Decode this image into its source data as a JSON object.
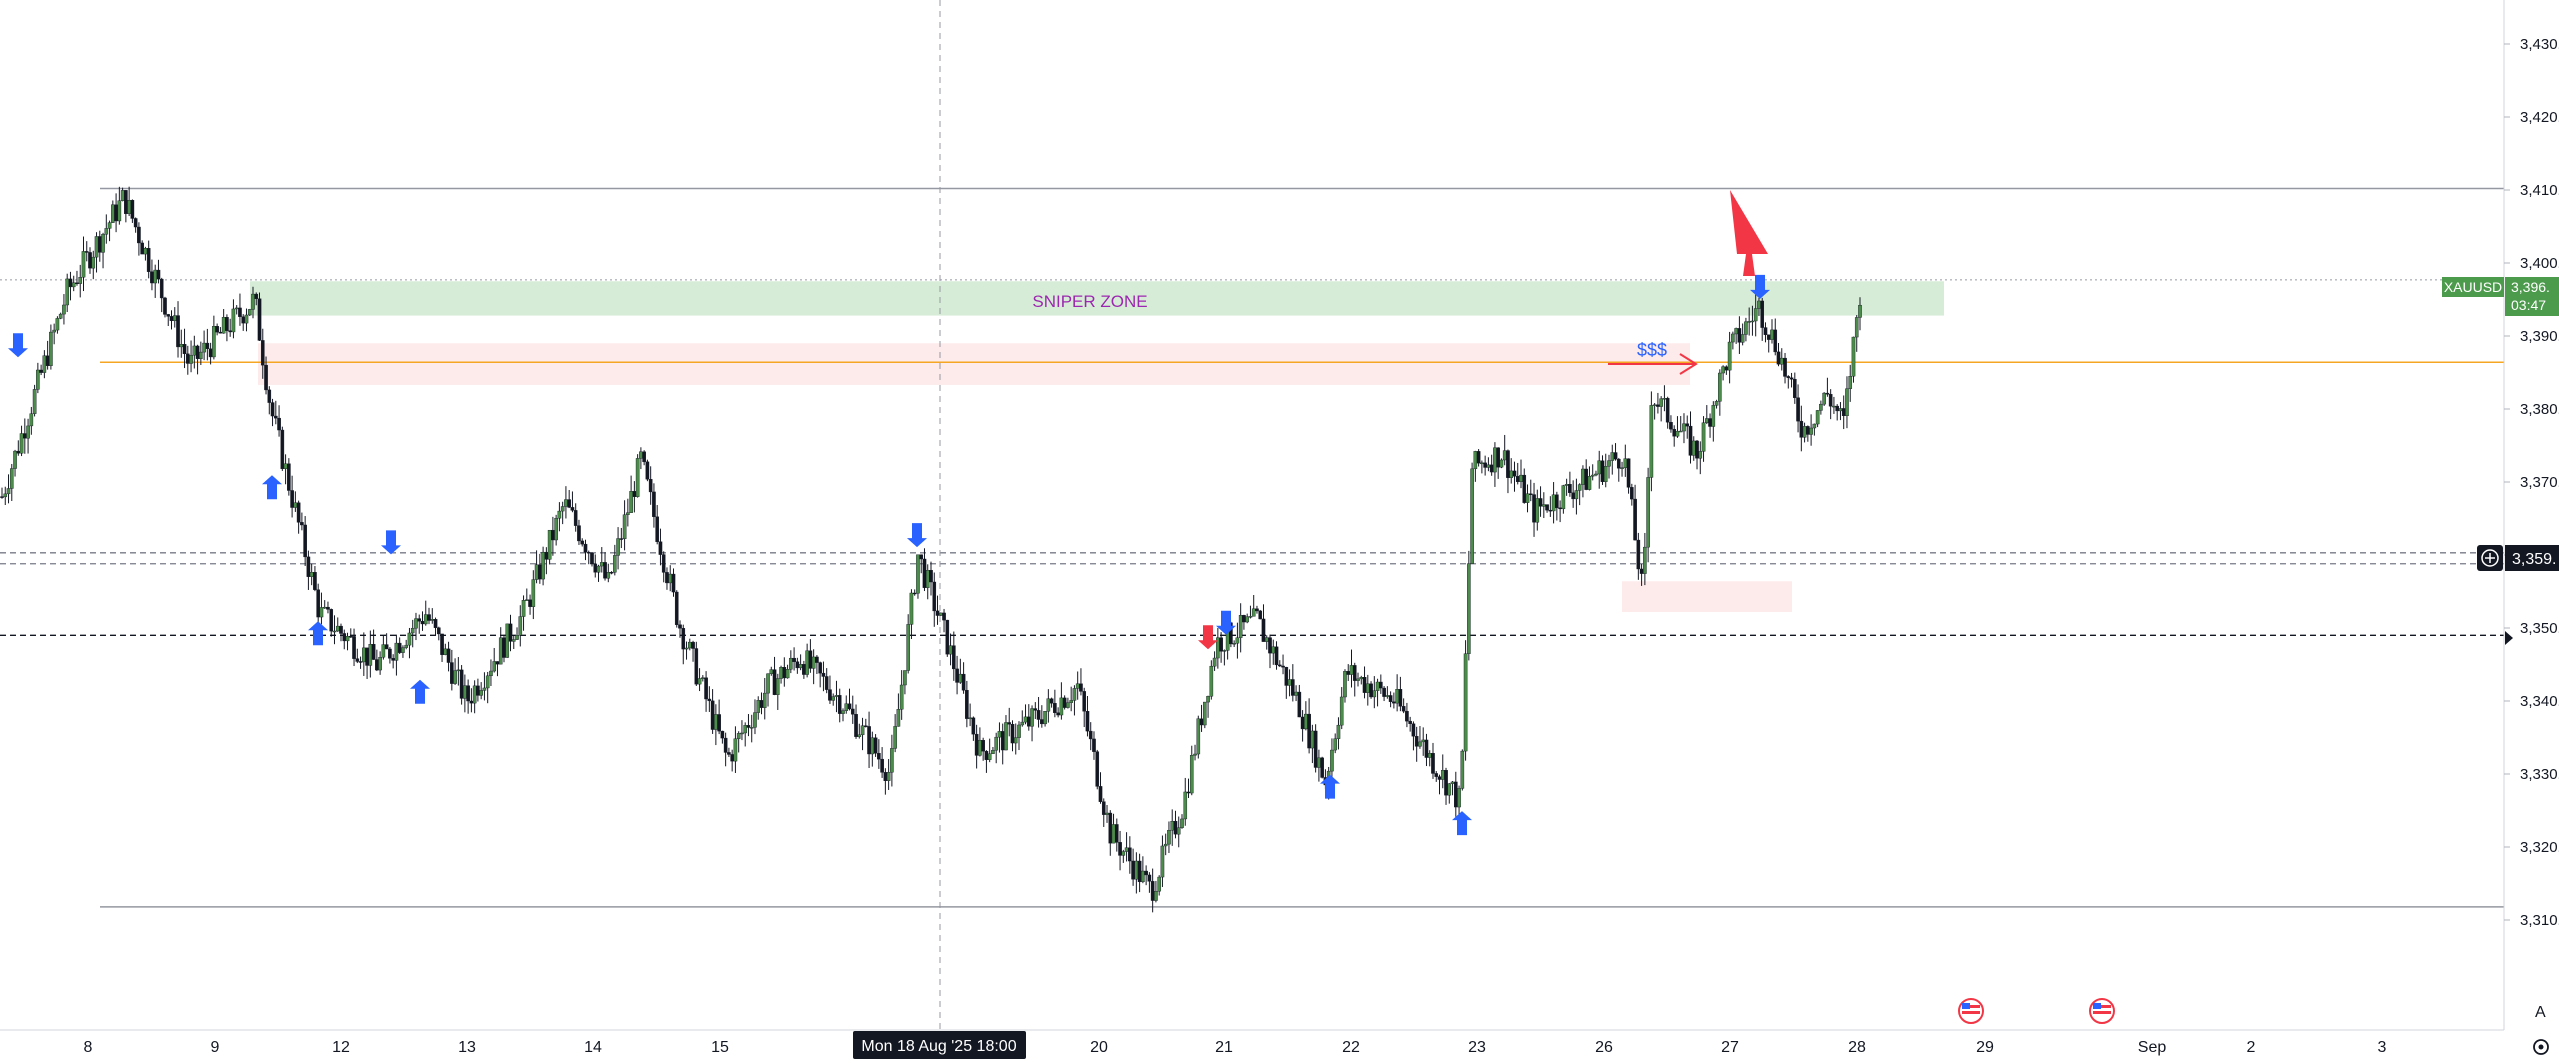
{
  "chart_data": {
    "type": "candlestick",
    "symbol": "XAUUSD",
    "y_axis": {
      "ylim": [
        3298,
        3437
      ],
      "ticks": [
        3310,
        3320,
        3330,
        3340,
        3350,
        3360,
        3370,
        3380,
        3390,
        3400,
        3410,
        3420,
        3430
      ],
      "tick_labels": [
        "3,310.",
        "3,320.",
        "3,330.",
        "3,340.",
        "3,350.",
        "3,360.",
        "3,370.",
        "3,380.",
        "3,390.",
        "3,400.",
        "3,410.",
        "3,420.",
        "3,430."
      ]
    },
    "x_axis": {
      "tick_labels": [
        "8",
        "9",
        "12",
        "13",
        "14",
        "15",
        "20",
        "21",
        "22",
        "23",
        "26",
        "27",
        "28",
        "29",
        "Sep",
        "2",
        "3"
      ],
      "crosshair_label": "Mon 18 Aug '25   18:00"
    },
    "price_tag": {
      "value": "3,396.",
      "countdown": "03:47",
      "price": 3396
    },
    "crosshair_price_tag": {
      "value": "3,359.",
      "price": 3359.2
    },
    "horizontal_lines": [
      {
        "price": 3410.2,
        "style": "solid",
        "color": "#9598a1"
      },
      {
        "price": 3311.8,
        "style": "solid",
        "color": "#9598a1"
      },
      {
        "price": 3386.4,
        "style": "solid",
        "color": "#f5a623"
      },
      {
        "price": 3360.3,
        "style": "dashed",
        "color": "#787b86"
      },
      {
        "price": 3358.8,
        "style": "dashed",
        "color": "#787b86"
      },
      {
        "price": 3349.0,
        "style": "dashed",
        "color": "#131722"
      },
      {
        "price": 3397.7,
        "style": "dotted",
        "color": "#b2b5be"
      }
    ],
    "zones": [
      {
        "label": "SNIPER ZONE",
        "top": 3397.5,
        "bottom": 3392.8,
        "color": "#c8e6c9"
      },
      {
        "label": "",
        "top": 3389.0,
        "bottom": 3383.3,
        "color": "#fde8e8"
      },
      {
        "label": "",
        "top": 3356.4,
        "bottom": 3352.2,
        "color": "#fde8e8"
      }
    ],
    "annotations": [
      {
        "text": "$$$"
      }
    ],
    "colors": {
      "up": "#4c8c4a",
      "down": "#131722",
      "arrow_blue": "#2962ff",
      "arrow_red": "#f23645"
    },
    "key_points": [
      [
        0,
        3368
      ],
      [
        40,
        3396
      ],
      [
        75,
        3409
      ],
      [
        115,
        3386
      ],
      [
        155,
        3395
      ],
      [
        165,
        3380
      ],
      [
        195,
        3352
      ],
      [
        230,
        3345
      ],
      [
        260,
        3352
      ],
      [
        285,
        3340
      ],
      [
        320,
        3352
      ],
      [
        345,
        3367
      ],
      [
        372,
        3356
      ],
      [
        392,
        3373
      ],
      [
        415,
        3351
      ],
      [
        445,
        3332
      ],
      [
        470,
        3342
      ],
      [
        490,
        3346
      ],
      [
        515,
        3340
      ],
      [
        545,
        3330
      ],
      [
        562,
        3360
      ],
      [
        580,
        3348
      ],
      [
        600,
        3333
      ],
      [
        630,
        3337
      ],
      [
        660,
        3342
      ],
      [
        680,
        3322
      ],
      [
        705,
        3314
      ],
      [
        725,
        3326
      ],
      [
        745,
        3348
      ],
      [
        770,
        3351
      ],
      [
        795,
        3340
      ],
      [
        812,
        3329
      ],
      [
        825,
        3344
      ],
      [
        855,
        3340
      ],
      [
        880,
        3331
      ],
      [
        895,
        3326
      ],
      [
        902,
        3372
      ],
      [
        920,
        3374
      ],
      [
        940,
        3366
      ],
      [
        970,
        3370
      ],
      [
        995,
        3374
      ],
      [
        1007,
        3354
      ],
      [
        1012,
        3382
      ],
      [
        1040,
        3374
      ],
      [
        1060,
        3388
      ],
      [
        1078,
        3394
      ],
      [
        1090,
        3388
      ],
      [
        1105,
        3377
      ],
      [
        1120,
        3382
      ],
      [
        1130,
        3378
      ],
      [
        1140,
        3396
      ]
    ]
  }
}
